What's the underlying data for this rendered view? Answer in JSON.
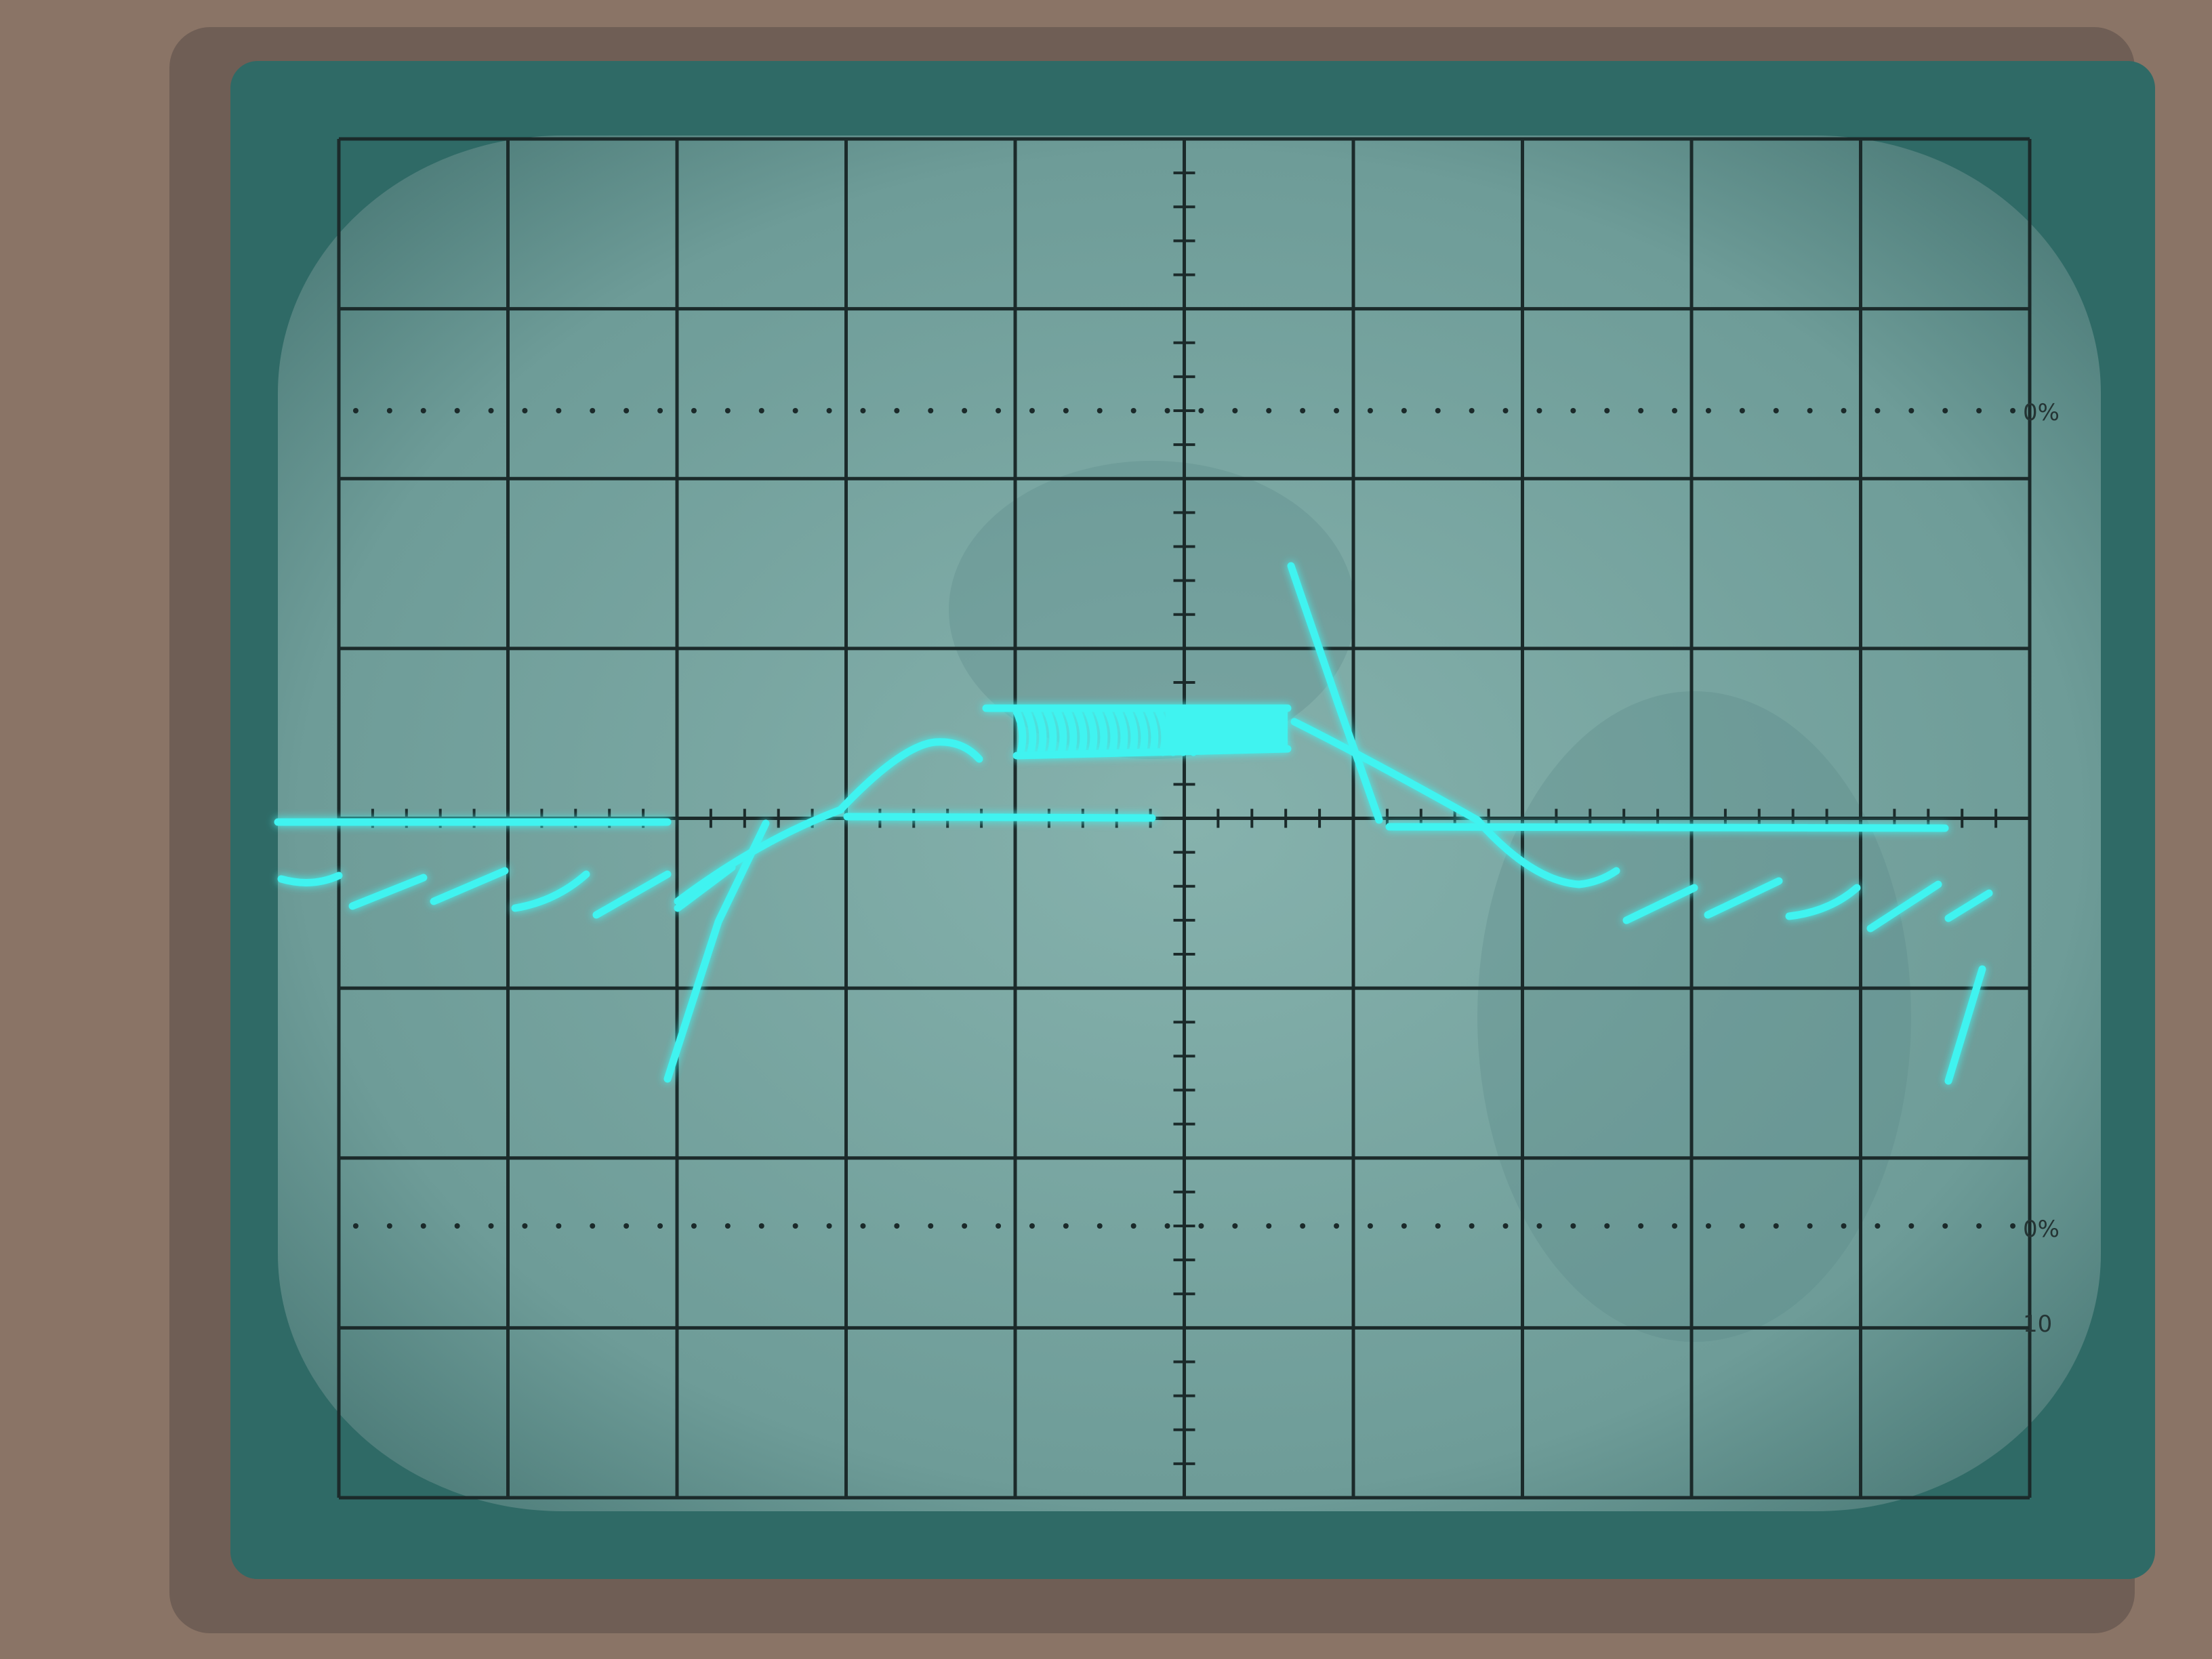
{
  "scene": {
    "subject": "oscilloscope-crt-screen",
    "grid_divisions": {
      "horizontal": 10,
      "vertical": 8
    },
    "minor_ticks_per_division": 5,
    "bezel_color": "#8a7466",
    "bezel_inner_color": "#6f5e55",
    "screen_frame_color": "#2f6a66",
    "screen_color": "#79a7a2",
    "graticule_color": "#1b2a2a",
    "trace_color": "#3ff3f0",
    "corner_labels": [
      "0%",
      "0%",
      "10"
    ]
  }
}
